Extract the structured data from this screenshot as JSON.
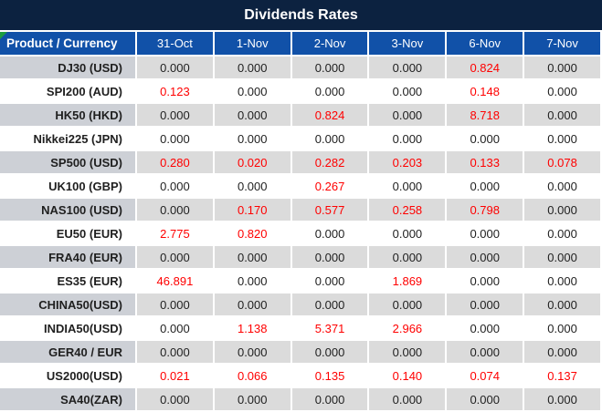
{
  "title": "Dividends Rates",
  "columns": [
    "Product / Currency",
    "31-Oct",
    "1-Nov",
    "2-Nov",
    "3-Nov",
    "6-Nov",
    "7-Nov"
  ],
  "rows": [
    {
      "product": "DJ30 (USD)",
      "values": [
        "0.000",
        "0.000",
        "0.000",
        "0.000",
        "0.824",
        "0.000"
      ]
    },
    {
      "product": "SPI200 (AUD)",
      "values": [
        "0.123",
        "0.000",
        "0.000",
        "0.000",
        "0.148",
        "0.000"
      ]
    },
    {
      "product": "HK50 (HKD)",
      "values": [
        "0.000",
        "0.000",
        "0.824",
        "0.000",
        "8.718",
        "0.000"
      ]
    },
    {
      "product": "Nikkei225 (JPN)",
      "values": [
        "0.000",
        "0.000",
        "0.000",
        "0.000",
        "0.000",
        "0.000"
      ]
    },
    {
      "product": "SP500 (USD)",
      "values": [
        "0.280",
        "0.020",
        "0.282",
        "0.203",
        "0.133",
        "0.078"
      ]
    },
    {
      "product": "UK100 (GBP)",
      "values": [
        "0.000",
        "0.000",
        "0.267",
        "0.000",
        "0.000",
        "0.000"
      ]
    },
    {
      "product": "NAS100 (USD)",
      "values": [
        "0.000",
        "0.170",
        "0.577",
        "0.258",
        "0.798",
        "0.000"
      ]
    },
    {
      "product": "EU50 (EUR)",
      "values": [
        "2.775",
        "0.820",
        "0.000",
        "0.000",
        "0.000",
        "0.000"
      ]
    },
    {
      "product": "FRA40 (EUR)",
      "values": [
        "0.000",
        "0.000",
        "0.000",
        "0.000",
        "0.000",
        "0.000"
      ]
    },
    {
      "product": "ES35 (EUR)",
      "values": [
        "46.891",
        "0.000",
        "0.000",
        "1.869",
        "0.000",
        "0.000"
      ]
    },
    {
      "product": "CHINA50(USD)",
      "values": [
        "0.000",
        "0.000",
        "0.000",
        "0.000",
        "0.000",
        "0.000"
      ]
    },
    {
      "product": "INDIA50(USD)",
      "values": [
        "0.000",
        "1.138",
        "5.371",
        "2.966",
        "0.000",
        "0.000"
      ]
    },
    {
      "product": "GER40 / EUR",
      "values": [
        "0.000",
        "0.000",
        "0.000",
        "0.000",
        "0.000",
        "0.000"
      ]
    },
    {
      "product": "US2000(USD)",
      "values": [
        "0.021",
        "0.066",
        "0.135",
        "0.140",
        "0.074",
        "0.137"
      ]
    },
    {
      "product": "SA40(ZAR)",
      "values": [
        "0.000",
        "0.000",
        "0.000",
        "0.000",
        "0.000",
        "0.000"
      ]
    }
  ],
  "zero_value": "0.000",
  "colors": {
    "title_bg": "#0C2240",
    "header_bg": "#1151A8",
    "label_gray": "#CDD0D6",
    "data_gray": "#DBDBDB",
    "red": "#FF0000",
    "value_text": "#1F1F1F",
    "green": "#1E9E40"
  }
}
